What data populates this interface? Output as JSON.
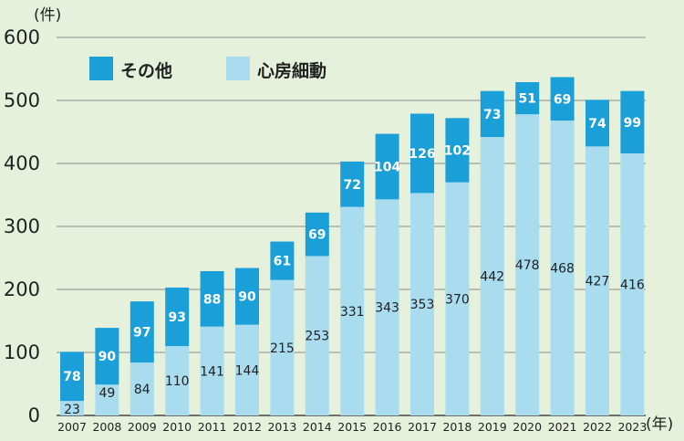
{
  "chart_data": {
    "type": "bar",
    "stacked": true,
    "title": "",
    "y_unit": "(件)",
    "x_unit": "(年)",
    "ylim": [
      0,
      600
    ],
    "yticks": [
      0,
      100,
      200,
      300,
      400,
      500,
      600
    ],
    "grid": true,
    "legend_position": "top-left",
    "categories": [
      "2007",
      "2008",
      "2009",
      "2010",
      "2011",
      "2012",
      "2013",
      "2014",
      "2015",
      "2016",
      "2017",
      "2018",
      "2019",
      "2020",
      "2021",
      "2022",
      "2023"
    ],
    "series": [
      {
        "name": "心房細動",
        "color": "#a8dcee",
        "label_color": "#222222",
        "values": [
          23,
          49,
          84,
          110,
          141,
          144,
          215,
          253,
          331,
          343,
          353,
          370,
          442,
          478,
          468,
          427,
          416
        ]
      },
      {
        "name": "その他",
        "color": "#1b9fd9",
        "label_color": "#ffffff",
        "values": [
          78,
          90,
          97,
          93,
          88,
          90,
          61,
          69,
          72,
          104,
          126,
          102,
          73,
          51,
          69,
          74,
          99
        ]
      }
    ],
    "legend_order": [
      "その他",
      "心房細動"
    ]
  }
}
